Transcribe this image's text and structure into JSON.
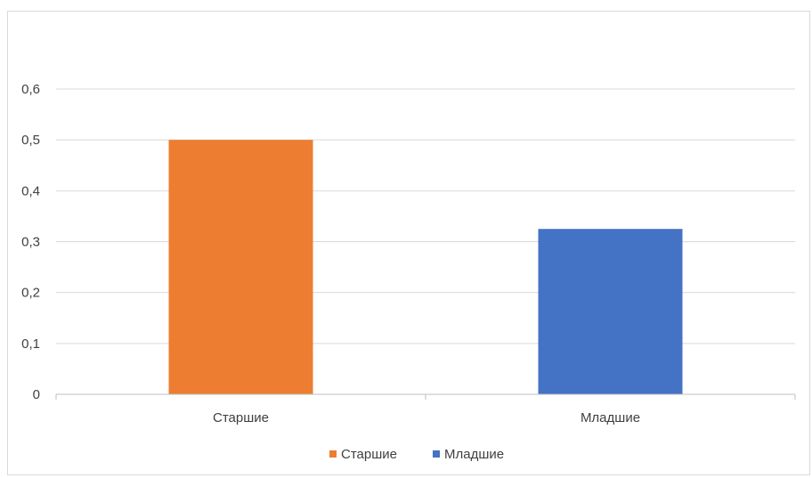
{
  "chart_data": {
    "type": "bar",
    "categories": [
      "Старшие",
      "Младшие"
    ],
    "values": [
      0.5,
      0.325
    ],
    "series": [
      {
        "name": "Старшие",
        "color": "#ED7D31"
      },
      {
        "name": "Младшие",
        "color": "#4472C4"
      }
    ],
    "y_ticks": [
      "0",
      "0,1",
      "0,2",
      "0,3",
      "0,4",
      "0,5",
      "0,6"
    ],
    "ylim": [
      0,
      0.6
    ],
    "grid": true,
    "legend_position": "bottom",
    "colors": {
      "gridline": "#d9d9d9",
      "axis": "#bfbfbf",
      "text": "#404040",
      "frame": "#d9d9d9"
    }
  }
}
